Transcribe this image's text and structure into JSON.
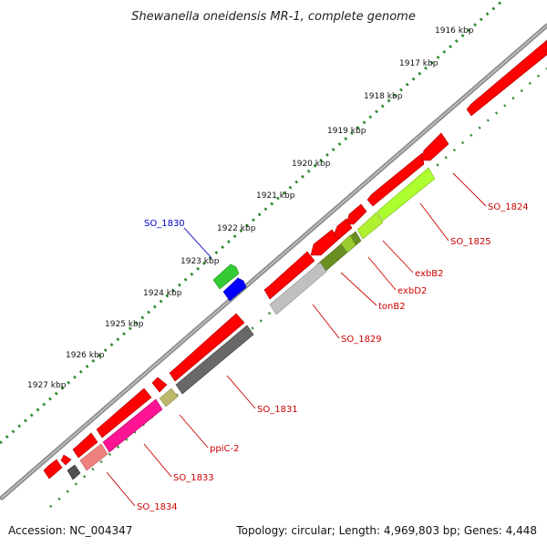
{
  "title": "Shewanella oneidensis MR-1, complete genome",
  "ticks": [
    "1916 kbp",
    "1917 kbp",
    "1918 kbp",
    "1919 kbp",
    "1920 kbp",
    "1921 kbp",
    "1922 kbp",
    "1923 kbp",
    "1924 kbp",
    "1925 kbp",
    "1926 kbp",
    "1927 kbp"
  ],
  "gene_labels": [
    {
      "text": "SO_1824",
      "color": "#cc0000"
    },
    {
      "text": "SO_1825",
      "color": "#cc0000"
    },
    {
      "text": "exbB2",
      "color": "#cc0000"
    },
    {
      "text": "exbD2",
      "color": "#cc0000"
    },
    {
      "text": "tonB2",
      "color": "#cc0000"
    },
    {
      "text": "SO_1829",
      "color": "#cc0000"
    },
    {
      "text": "SO_1830",
      "color": "#0000cc"
    },
    {
      "text": "SO_1831",
      "color": "#cc0000"
    },
    {
      "text": "ppiC-2",
      "color": "#cc0000"
    },
    {
      "text": "SO_1833",
      "color": "#cc0000"
    },
    {
      "text": "SO_1834",
      "color": "#cc0000"
    }
  ],
  "footer": {
    "accession": "Accession: NC_004347",
    "topology": "Topology: circular; Length: 4,969,803 bp; Genes: 4,448"
  },
  "colors": {
    "backbone": "#808080",
    "tick_green": "#2e8b2e",
    "cds_red": "#ff0000",
    "forward_green": "#33cc33",
    "forward_blue": "#0000ff"
  }
}
